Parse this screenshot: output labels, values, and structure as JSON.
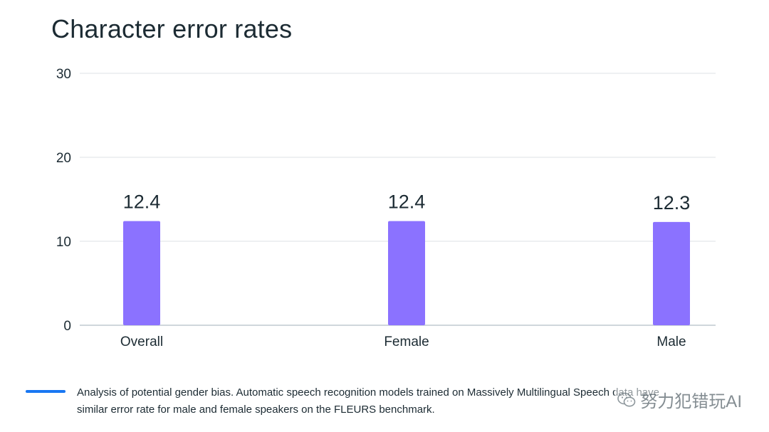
{
  "chart_data": {
    "type": "bar",
    "title": "Character error rates",
    "categories": [
      "Overall",
      "Female",
      "Male"
    ],
    "values": [
      12.4,
      12.4,
      12.3
    ],
    "data_labels": [
      "12.4",
      "12.4",
      "12.3"
    ],
    "yticks": [
      "0",
      "10",
      "20",
      "30"
    ],
    "ylim": [
      0,
      30
    ],
    "grid": true,
    "bar_color": "#8b72ff"
  },
  "caption": {
    "line1": "Analysis of potential gender bias. Automatic speech recognition models trained on Massively Multilingual Speech data have",
    "line2": "similar error rate for male and female speakers on the FLEURS benchmark.",
    "accent_color": "#1877f2"
  },
  "watermark": {
    "text": "努力犯错玩AI",
    "icon": "wechat-icon"
  }
}
